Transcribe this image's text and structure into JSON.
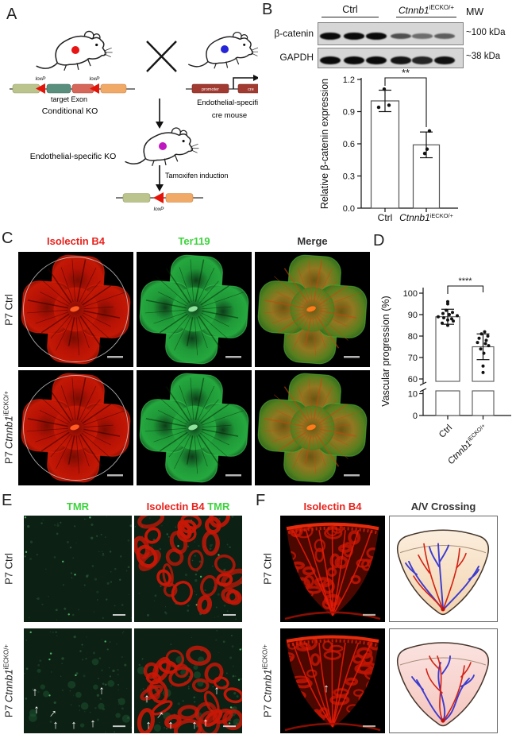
{
  "colors": {
    "red_label": "#e8231d",
    "green_label": "#3dd43d",
    "header_dark": "#333333",
    "loxp_red": "#e51408",
    "construct_olive": "#bcc48e",
    "construct_teal": "#5a8f7d",
    "construct_salmon": "#d5685a",
    "construct_orange": "#f1a967",
    "construct_darkred": "#a13a31",
    "artery_red": "#d32113",
    "vein_blue": "#3b3bcf"
  },
  "gene": {
    "name": "Ctnnb1",
    "sup": "iECKO/+"
  },
  "labels": {
    "p7_ctrl": "P7 Ctrl",
    "p7_prefix": "P7"
  },
  "panels": {
    "A": {
      "label": "A",
      "loxp": "loxP",
      "target_exon": "target Exon",
      "conditional_ko": "Conditional KO",
      "promoter": "promoter",
      "cre": "cre",
      "cre_mouse_line1": "Endothelial-specific",
      "cre_mouse_line2": "cre mouse",
      "endothelial_ko": "Endothelial-specific KO",
      "tamoxifen": "Tamoxifen induction"
    },
    "B": {
      "label": "B",
      "blot": {
        "mw_header": "MW",
        "group_ctrl": "Ctrl",
        "rows": [
          {
            "target": "β-catenin",
            "mw": "~100 kDa",
            "lane_intensities": [
              1,
              1,
              1,
              0.55,
              0.35,
              0.45
            ]
          },
          {
            "target": "GAPDH",
            "mw": "~38  kDa",
            "lane_intensities": [
              1,
              1,
              1,
              0.92,
              0.82,
              0.95
            ]
          }
        ]
      },
      "chart": {
        "type": "bar",
        "ylabel": "Relative β-catenin expression",
        "yticks": [
          0,
          0.3,
          0.6,
          0.9,
          1.2
        ],
        "ytick_labels": [
          "0.0",
          "0.3",
          "0.6",
          "0.9",
          "1.2"
        ],
        "ylim": [
          0,
          1.2
        ],
        "categories": [
          {
            "text": "Ctrl"
          },
          {
            "text": "Ctnnb1",
            "sup": "iECKO/+",
            "italic": true
          }
        ],
        "values": [
          1.0,
          0.59
        ],
        "errors": [
          0.1,
          0.12
        ],
        "points": [
          [
            1.11,
            0.94,
            0.96
          ],
          [
            0.72,
            0.55,
            0.51
          ]
        ],
        "significance": "**"
      }
    },
    "C": {
      "label": "C",
      "headers": [
        "Isolectin B4",
        "Ter119",
        "Merge"
      ]
    },
    "D": {
      "label": "D",
      "chart": {
        "type": "bar",
        "ylabel": "Vascular progression (%)",
        "axis_break": true,
        "yticks_upper": [
          60,
          70,
          80,
          90,
          100
        ],
        "ytick_labels_upper": [
          "60",
          "70",
          "80",
          "90",
          "100"
        ],
        "yticks_lower": [
          0,
          10
        ],
        "ytick_labels_lower": [
          "0",
          "10"
        ],
        "categories": [
          {
            "text": "Ctrl"
          },
          {
            "text": "Ctnnb1",
            "sup": "iECKO/+",
            "italic": true
          }
        ],
        "values": [
          89,
          75
        ],
        "errors": [
          3.5,
          6
        ],
        "points": [
          [
            96,
            95,
            92,
            91,
            90.5,
            90,
            89.5,
            89,
            88.5,
            88,
            87.5,
            87,
            86,
            85
          ],
          [
            82,
            81,
            80,
            79,
            78,
            77,
            76.5,
            75.5,
            74,
            72,
            66,
            63
          ]
        ],
        "significance": "****"
      }
    },
    "E": {
      "label": "E",
      "header_tmr": "TMR",
      "header_ib4": "Isolectin B4",
      "header_tmr2": "TMR"
    },
    "F": {
      "label": "F",
      "header_ib4": "Isolectin B4",
      "header_av": "A/V Crossing"
    }
  }
}
